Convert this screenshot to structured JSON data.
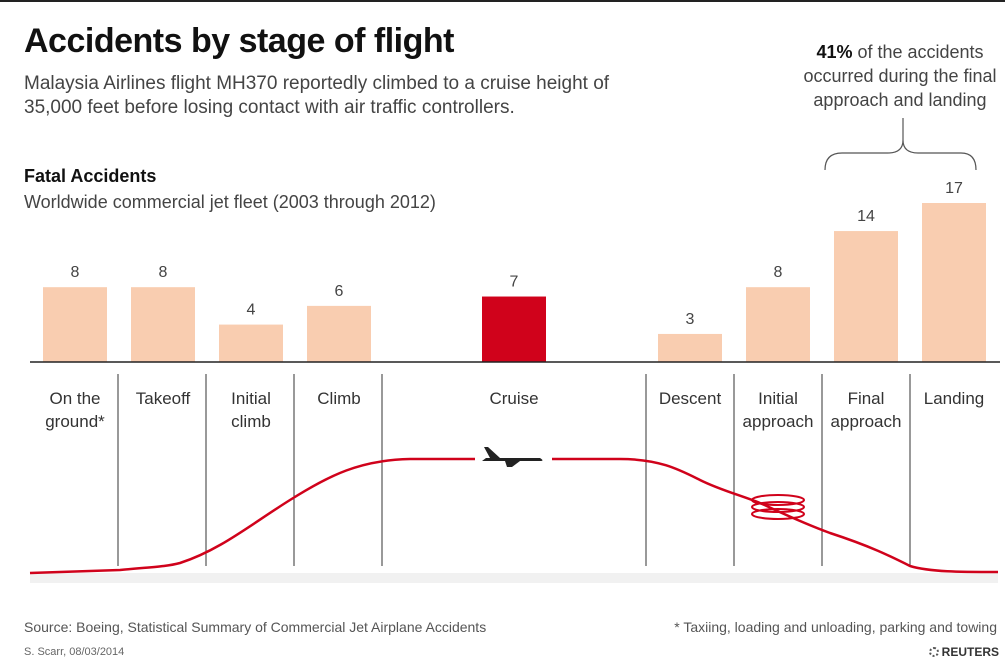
{
  "header": {
    "title": "Accidents by stage of flight",
    "subtitle": "Malaysia Airlines flight MH370 reportedly climbed to a cruise height of 35,000 feet before losing contact with air traffic controllers."
  },
  "callout": {
    "highlight": "41%",
    "text": " of the accidents occurred during the final approach and landing"
  },
  "chart_data": {
    "type": "bar",
    "title": "Fatal Accidents",
    "subtitle": "Worldwide commercial jet fleet (2003 through 2012)",
    "categories": [
      "On the ground*",
      "Takeoff",
      "Initial climb",
      "Climb",
      "Cruise",
      "Descent",
      "Initial approach",
      "Final approach",
      "Landing"
    ],
    "category_lines": [
      [
        "On the",
        "ground*"
      ],
      [
        "Takeoff"
      ],
      [
        "Initial",
        "climb"
      ],
      [
        "Climb"
      ],
      [
        "Cruise"
      ],
      [
        "Descent"
      ],
      [
        "Initial",
        "approach"
      ],
      [
        "Final",
        "approach"
      ],
      [
        "Landing"
      ]
    ],
    "values": [
      8,
      8,
      4,
      6,
      7,
      3,
      8,
      14,
      17
    ],
    "highlight_category": "Cruise",
    "ylim": [
      0,
      17
    ],
    "grid": false,
    "colors": {
      "bar": "#f9cdb0",
      "highlight": "#d0021b",
      "flight_path": "#d0021b"
    }
  },
  "footer": {
    "source": "Source: Boeing, Statistical Summary of Commercial Jet Airplane Accidents",
    "note": "* Taxiing, loading and unloading, parking and towing",
    "byline": "S. Scarr, 08/03/2014",
    "brand": "REUTERS"
  }
}
